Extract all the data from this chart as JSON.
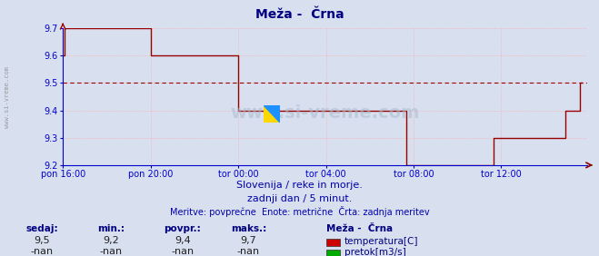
{
  "title": "Meža -  Črna",
  "title_color": "#000080",
  "title_fontsize": 10,
  "bg_color": "#d8e0f0",
  "plot_bg_color": "#d8e0f0",
  "grid_color": "#ffaaaa",
  "axis_color": "#0000cc",
  "line_color": "#990000",
  "line_width": 1.0,
  "xlim": [
    0,
    287
  ],
  "ylim": [
    9.2,
    9.7
  ],
  "yticks": [
    9.2,
    9.3,
    9.4,
    9.5,
    9.6,
    9.7
  ],
  "xtick_labels": [
    "pon 16:00",
    "pon 20:00",
    "tor 00:00",
    "tor 04:00",
    "tor 08:00",
    "tor 12:00"
  ],
  "xtick_positions": [
    0,
    48,
    96,
    144,
    192,
    240
  ],
  "watermark": "www.si-vreme.com",
  "subtitle1": "Slovenija / reke in morje.",
  "subtitle2": "zadnji dan / 5 minut.",
  "subtitle3": "Meritve: povprečne  Enote: metrične  Črta: zadnja meritev",
  "subtitle_color": "#0000aa",
  "subtitle_fontsize": 8,
  "left_label": "www.si-vreme.com",
  "stats_label_color": "#000080",
  "stats_headers": [
    "sedaj:",
    "min.:",
    "povpr.:",
    "maks.:"
  ],
  "stats_values_temp": [
    "9,5",
    "9,2",
    "9,4",
    "9,7"
  ],
  "stats_values_flow": [
    "-nan",
    "-nan",
    "-nan",
    "-nan"
  ],
  "legend_title": "Meža -  Črna",
  "legend_items": [
    "temperatura[C]",
    "pretok[m3/s]"
  ],
  "legend_colors": [
    "#cc0000",
    "#00aa00"
  ],
  "temperature_data": [
    9.6,
    9.7,
    9.7,
    9.7,
    9.7,
    9.7,
    9.7,
    9.7,
    9.7,
    9.7,
    9.7,
    9.7,
    9.7,
    9.7,
    9.7,
    9.7,
    9.7,
    9.7,
    9.7,
    9.7,
    9.7,
    9.7,
    9.7,
    9.7,
    9.7,
    9.7,
    9.7,
    9.7,
    9.7,
    9.7,
    9.7,
    9.7,
    9.7,
    9.7,
    9.7,
    9.7,
    9.7,
    9.7,
    9.7,
    9.7,
    9.7,
    9.7,
    9.7,
    9.7,
    9.7,
    9.7,
    9.7,
    9.7,
    9.6,
    9.6,
    9.6,
    9.6,
    9.6,
    9.6,
    9.6,
    9.6,
    9.6,
    9.6,
    9.6,
    9.6,
    9.6,
    9.6,
    9.6,
    9.6,
    9.6,
    9.6,
    9.6,
    9.6,
    9.6,
    9.6,
    9.6,
    9.6,
    9.6,
    9.6,
    9.6,
    9.6,
    9.6,
    9.6,
    9.6,
    9.6,
    9.6,
    9.6,
    9.6,
    9.6,
    9.6,
    9.6,
    9.6,
    9.6,
    9.6,
    9.6,
    9.6,
    9.6,
    9.6,
    9.6,
    9.6,
    9.6,
    9.4,
    9.4,
    9.4,
    9.4,
    9.4,
    9.4,
    9.4,
    9.4,
    9.4,
    9.4,
    9.4,
    9.4,
    9.4,
    9.4,
    9.4,
    9.4,
    9.4,
    9.4,
    9.4,
    9.4,
    9.4,
    9.4,
    9.4,
    9.4,
    9.4,
    9.4,
    9.4,
    9.4,
    9.4,
    9.4,
    9.4,
    9.4,
    9.4,
    9.4,
    9.4,
    9.4,
    9.4,
    9.4,
    9.4,
    9.4,
    9.4,
    9.4,
    9.4,
    9.4,
    9.4,
    9.4,
    9.4,
    9.4,
    9.4,
    9.4,
    9.4,
    9.4,
    9.4,
    9.4,
    9.4,
    9.4,
    9.4,
    9.4,
    9.4,
    9.4,
    9.4,
    9.4,
    9.4,
    9.4,
    9.4,
    9.4,
    9.4,
    9.4,
    9.4,
    9.4,
    9.4,
    9.4,
    9.4,
    9.4,
    9.4,
    9.4,
    9.4,
    9.4,
    9.4,
    9.4,
    9.4,
    9.4,
    9.4,
    9.4,
    9.4,
    9.4,
    9.4,
    9.4,
    9.4,
    9.4,
    9.4,
    9.4,
    9.2,
    9.2,
    9.2,
    9.2,
    9.2,
    9.2,
    9.2,
    9.2,
    9.2,
    9.2,
    9.2,
    9.2,
    9.2,
    9.2,
    9.2,
    9.2,
    9.2,
    9.2,
    9.2,
    9.2,
    9.2,
    9.2,
    9.2,
    9.2,
    9.2,
    9.2,
    9.2,
    9.2,
    9.2,
    9.2,
    9.2,
    9.2,
    9.2,
    9.2,
    9.2,
    9.2,
    9.2,
    9.2,
    9.2,
    9.2,
    9.2,
    9.2,
    9.2,
    9.2,
    9.2,
    9.2,
    9.2,
    9.2,
    9.3,
    9.3,
    9.3,
    9.3,
    9.3,
    9.3,
    9.3,
    9.3,
    9.3,
    9.3,
    9.3,
    9.3,
    9.3,
    9.3,
    9.3,
    9.3,
    9.3,
    9.3,
    9.3,
    9.3,
    9.3,
    9.3,
    9.3,
    9.3,
    9.3,
    9.3,
    9.3,
    9.3,
    9.3,
    9.3,
    9.3,
    9.3,
    9.3,
    9.3,
    9.3,
    9.3,
    9.3,
    9.3,
    9.3,
    9.4,
    9.4,
    9.4,
    9.4,
    9.4,
    9.4,
    9.4,
    9.4,
    9.5,
    9.5
  ]
}
